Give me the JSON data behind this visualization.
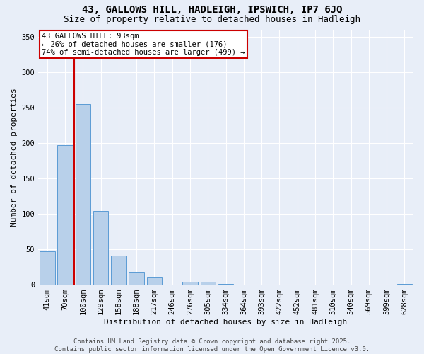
{
  "title1": "43, GALLOWS HILL, HADLEIGH, IPSWICH, IP7 6JQ",
  "title2": "Size of property relative to detached houses in Hadleigh",
  "xlabel": "Distribution of detached houses by size in Hadleigh",
  "ylabel": "Number of detached properties",
  "categories": [
    "41sqm",
    "70sqm",
    "100sqm",
    "129sqm",
    "158sqm",
    "188sqm",
    "217sqm",
    "246sqm",
    "276sqm",
    "305sqm",
    "334sqm",
    "364sqm",
    "393sqm",
    "422sqm",
    "452sqm",
    "481sqm",
    "510sqm",
    "540sqm",
    "569sqm",
    "599sqm",
    "628sqm"
  ],
  "values": [
    47,
    197,
    255,
    104,
    41,
    18,
    11,
    0,
    4,
    4,
    1,
    0,
    0,
    0,
    0,
    0,
    0,
    0,
    0,
    0,
    1
  ],
  "bar_color": "#b8d0ea",
  "bar_edge_color": "#5b9bd5",
  "vline_color": "#cc0000",
  "annotation_text": "43 GALLOWS HILL: 93sqm\n← 26% of detached houses are smaller (176)\n74% of semi-detached houses are larger (499) →",
  "annotation_box_facecolor": "#ffffff",
  "annotation_box_edgecolor": "#cc0000",
  "ylim": [
    0,
    360
  ],
  "yticks": [
    0,
    50,
    100,
    150,
    200,
    250,
    300,
    350
  ],
  "bg_color": "#e8eef8",
  "footer_text": "Contains HM Land Registry data © Crown copyright and database right 2025.\nContains public sector information licensed under the Open Government Licence v3.0.",
  "title1_fontsize": 10,
  "title2_fontsize": 9,
  "label_fontsize": 8,
  "tick_fontsize": 7.5,
  "annot_fontsize": 7.5,
  "footer_fontsize": 6.5
}
